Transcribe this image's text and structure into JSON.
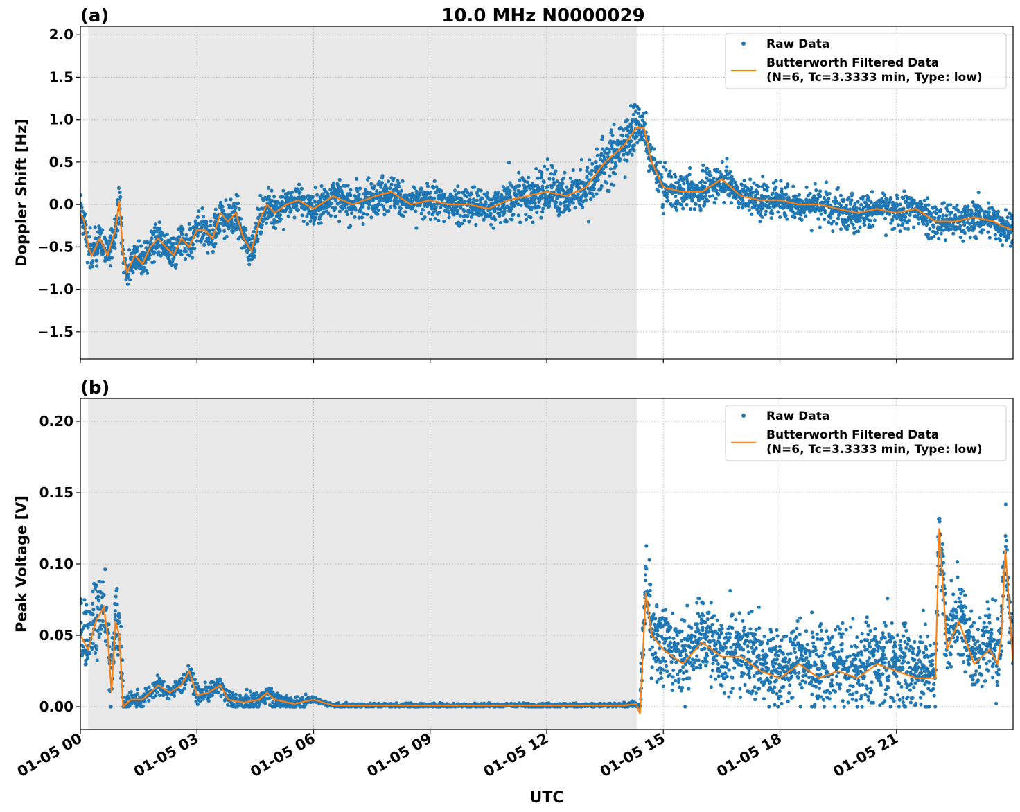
{
  "figure": {
    "title": "10.0 MHz N0000029",
    "xlabel": "UTC",
    "x_tick_labels": [
      "01-05 00",
      "01-05 03",
      "01-05 06",
      "01-05 09",
      "01-05 12",
      "01-05 15",
      "01-05 18",
      "01-05 21"
    ],
    "colors": {
      "raw": "#1f77b4",
      "filtered": "#ff7f0e",
      "shade": "#e8e8e8",
      "grid": "#b0b0b0"
    },
    "legend": {
      "raw_label": "Raw Data",
      "filtered_label_line1": "Butterworth Filtered Data",
      "filtered_label_line2": "(N=6, Tc=3.3333 min, Type: low)"
    }
  },
  "chart_data": [
    {
      "panel": "(a)",
      "type": "scatter",
      "ylabel": "Doppler Shift [Hz]",
      "xlim_hours": [
        0,
        24
      ],
      "ylim": [
        -1.82,
        2.1
      ],
      "y_ticks": [
        -1.5,
        -1.0,
        -0.5,
        0.0,
        0.5,
        1.0,
        1.5,
        2.0
      ],
      "y_tick_labels": [
        "−1.5",
        "−1.0",
        "−0.5",
        "0.0",
        "0.5",
        "1.0",
        "1.5",
        "2.0"
      ],
      "shaded_interval_hours": [
        0.2,
        14.33
      ],
      "grid": true,
      "legend_position": "top-right",
      "series": [
        {
          "name": "Raw Data",
          "style": "points"
        },
        {
          "name": "Butterworth Filtered Data (N=6, Tc=3.3333 min, Type: low)",
          "style": "line",
          "x_hours": [
            0.0,
            0.1,
            0.2,
            0.3,
            0.5,
            0.7,
            0.9,
            1.0,
            1.1,
            1.2,
            1.4,
            1.6,
            1.8,
            2.0,
            2.2,
            2.4,
            2.6,
            2.8,
            3.0,
            3.2,
            3.4,
            3.6,
            3.8,
            4.0,
            4.2,
            4.4,
            4.6,
            4.8,
            5.0,
            5.3,
            5.6,
            6.0,
            6.5,
            7.0,
            7.3,
            7.6,
            8.0,
            8.5,
            9.0,
            9.5,
            10.0,
            10.5,
            11.0,
            11.5,
            12.0,
            12.5,
            13.0,
            13.5,
            14.0,
            14.3,
            14.5,
            14.7,
            15.0,
            15.5,
            16.0,
            16.5,
            17.0,
            17.5,
            18.0,
            18.5,
            19.0,
            19.5,
            20.0,
            20.5,
            21.0,
            21.5,
            22.0,
            22.5,
            23.0,
            23.5,
            23.7,
            24.0
          ],
          "values": [
            -0.1,
            -0.2,
            -0.5,
            -0.6,
            -0.4,
            -0.6,
            -0.3,
            0.05,
            -0.6,
            -0.8,
            -0.6,
            -0.7,
            -0.5,
            -0.4,
            -0.5,
            -0.6,
            -0.4,
            -0.5,
            -0.3,
            -0.3,
            -0.4,
            -0.1,
            -0.2,
            -0.1,
            -0.4,
            -0.55,
            -0.2,
            0.0,
            -0.1,
            0.0,
            0.05,
            -0.05,
            0.1,
            0.0,
            0.05,
            0.1,
            0.15,
            0.0,
            0.05,
            0.0,
            0.0,
            -0.05,
            0.05,
            0.1,
            0.15,
            0.1,
            0.2,
            0.5,
            0.7,
            0.9,
            0.9,
            0.5,
            0.2,
            0.15,
            0.15,
            0.3,
            0.1,
            0.05,
            0.05,
            0.0,
            0.0,
            -0.05,
            -0.1,
            -0.05,
            -0.1,
            -0.05,
            -0.2,
            -0.2,
            -0.15,
            -0.2,
            -0.25,
            -0.3
          ]
        }
      ]
    },
    {
      "panel": "(b)",
      "type": "scatter",
      "ylabel": "Peak Voltage [V]",
      "xlim_hours": [
        0,
        24
      ],
      "ylim": [
        -0.016,
        0.216
      ],
      "y_ticks": [
        0.0,
        0.05,
        0.1,
        0.15,
        0.2
      ],
      "y_tick_labels": [
        "0.00",
        "0.05",
        "0.10",
        "0.15",
        "0.20"
      ],
      "shaded_interval_hours": [
        0.2,
        14.33
      ],
      "grid": true,
      "legend_position": "top-right",
      "series": [
        {
          "name": "Raw Data",
          "style": "points"
        },
        {
          "name": "Butterworth Filtered Data (N=6, Tc=3.3333 min, Type: low)",
          "style": "line",
          "x_hours": [
            0.0,
            0.2,
            0.4,
            0.6,
            0.7,
            0.8,
            0.9,
            1.0,
            1.1,
            1.3,
            1.6,
            2.0,
            2.3,
            2.6,
            2.8,
            3.0,
            3.3,
            3.6,
            3.8,
            4.2,
            4.6,
            4.8,
            5.0,
            5.5,
            6.0,
            6.5,
            8.0,
            10.0,
            12.0,
            14.0,
            14.3,
            14.4,
            14.55,
            14.7,
            15.0,
            15.5,
            16.0,
            16.5,
            17.0,
            17.5,
            18.0,
            18.5,
            19.0,
            19.5,
            20.0,
            20.5,
            21.0,
            21.5,
            22.0,
            22.1,
            22.3,
            22.6,
            23.0,
            23.4,
            23.6,
            23.7,
            23.8,
            24.0
          ],
          "values": [
            0.05,
            0.04,
            0.06,
            0.07,
            0.05,
            0.01,
            0.06,
            0.05,
            0.0,
            0.005,
            0.005,
            0.015,
            0.01,
            0.015,
            0.025,
            0.008,
            0.01,
            0.015,
            0.005,
            0.003,
            0.005,
            0.01,
            0.005,
            0.002,
            0.005,
            0.001,
            0.001,
            0.001,
            0.001,
            0.001,
            0.002,
            -0.005,
            0.08,
            0.05,
            0.04,
            0.03,
            0.045,
            0.035,
            0.035,
            0.025,
            0.02,
            0.03,
            0.02,
            0.025,
            0.02,
            0.03,
            0.025,
            0.02,
            0.02,
            0.125,
            0.04,
            0.06,
            0.03,
            0.04,
            0.03,
            0.05,
            0.11,
            0.03
          ]
        }
      ]
    }
  ]
}
